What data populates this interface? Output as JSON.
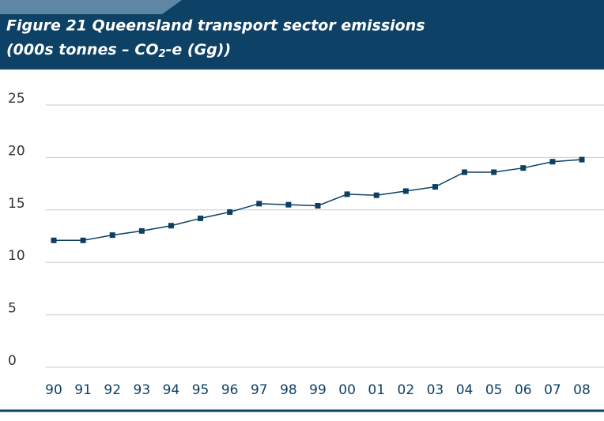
{
  "chart_data": {
    "type": "line",
    "title": "Figure 21 Queensland transport sector emissions",
    "subtitle": [
      "(000s tonnes – CO",
      "2",
      "-e (Gg))"
    ],
    "categories": [
      "90",
      "91",
      "92",
      "93",
      "94",
      "95",
      "96",
      "97",
      "98",
      "99",
      "00",
      "01",
      "02",
      "03",
      "04",
      "05",
      "06",
      "07",
      "08"
    ],
    "series": [
      {
        "name": "Queensland transport sector emissions",
        "color": "#0b3f63",
        "values": [
          12.1,
          12.1,
          12.6,
          13.0,
          13.5,
          14.2,
          14.8,
          15.6,
          15.5,
          15.4,
          16.5,
          16.4,
          16.8,
          17.2,
          18.6,
          18.6,
          19.0,
          19.6,
          19.8
        ]
      }
    ],
    "ylim": [
      0,
      25
    ],
    "yticks": [
      0,
      5,
      10,
      15,
      20,
      25
    ],
    "grid": true
  }
}
